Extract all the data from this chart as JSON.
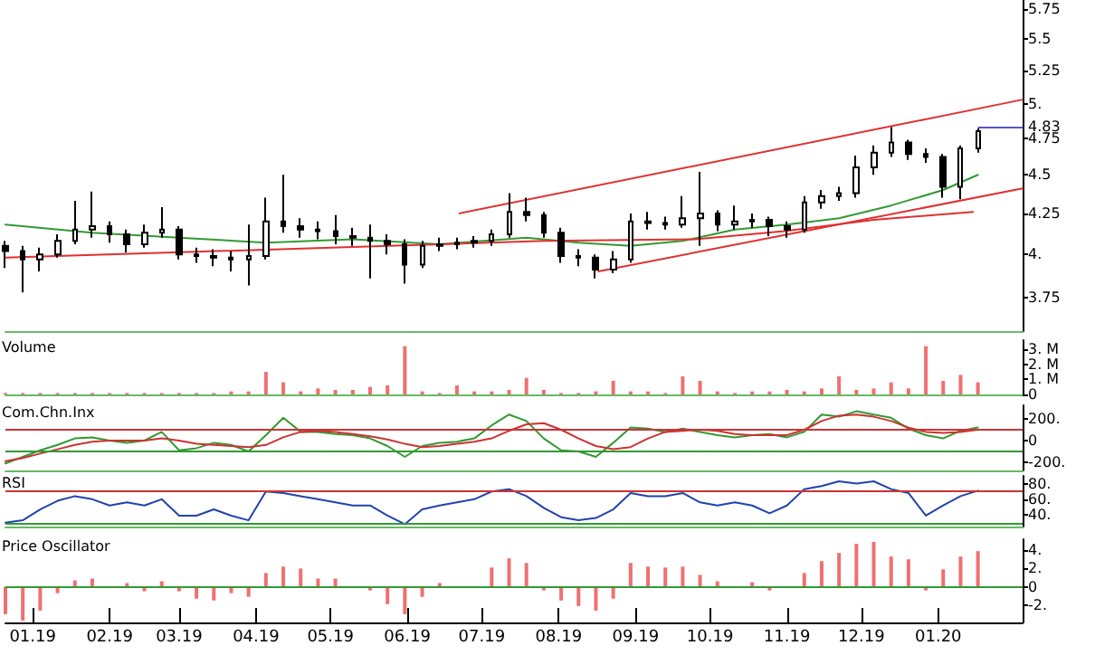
{
  "chart_data": [
    {
      "type": "candlestick",
      "color": "#000000",
      "x": [
        "2018-12-21",
        "2018-12-28",
        "2019-01-04",
        "2019-01-11",
        "2019-01-18",
        "2019-01-25",
        "2019-02-01",
        "2019-02-08",
        "2019-02-15",
        "2019-02-22",
        "2019-03-01",
        "2019-03-08",
        "2019-03-15",
        "2019-03-22",
        "2019-03-29",
        "2019-04-05",
        "2019-04-12",
        "2019-04-19",
        "2019-04-26",
        "2019-05-03",
        "2019-05-10",
        "2019-05-17",
        "2019-05-24",
        "2019-05-31",
        "2019-06-07",
        "2019-06-14",
        "2019-06-21",
        "2019-06-28",
        "2019-07-05",
        "2019-07-12",
        "2019-07-19",
        "2019-07-26",
        "2019-08-02",
        "2019-08-09",
        "2019-08-16",
        "2019-08-23",
        "2019-08-30",
        "2019-09-06",
        "2019-09-13",
        "2019-09-20",
        "2019-09-27",
        "2019-10-04",
        "2019-10-11",
        "2019-10-18",
        "2019-10-25",
        "2019-11-01",
        "2019-11-08",
        "2019-11-15",
        "2019-11-22",
        "2019-11-29",
        "2019-12-06",
        "2019-12-13",
        "2019-12-20",
        "2019-12-27",
        "2020-01-03",
        "2020-01-10",
        "2020-01-17"
      ],
      "ohlc": [
        [
          4.05,
          4.08,
          3.92,
          4.02
        ],
        [
          4.02,
          4.05,
          3.78,
          3.97
        ],
        [
          3.97,
          4.04,
          3.9,
          4.0
        ],
        [
          4.0,
          4.12,
          3.98,
          4.08
        ],
        [
          4.08,
          4.33,
          4.06,
          4.15
        ],
        [
          4.15,
          4.39,
          4.1,
          4.17
        ],
        [
          4.17,
          4.2,
          4.07,
          4.12
        ],
        [
          4.12,
          4.15,
          4.01,
          4.06
        ],
        [
          4.06,
          4.18,
          4.04,
          4.13
        ],
        [
          4.13,
          4.29,
          4.1,
          4.15
        ],
        [
          4.15,
          4.17,
          3.97,
          4.0
        ],
        [
          4.0,
          4.04,
          3.95,
          3.99
        ],
        [
          3.99,
          4.03,
          3.93,
          3.98
        ],
        [
          3.98,
          4.02,
          3.9,
          3.97
        ],
        [
          3.97,
          4.18,
          3.82,
          3.99
        ],
        [
          3.99,
          4.35,
          3.97,
          4.2
        ],
        [
          4.2,
          4.5,
          4.13,
          4.17
        ],
        [
          4.17,
          4.22,
          4.1,
          4.15
        ],
        [
          4.15,
          4.2,
          4.09,
          4.14
        ],
        [
          4.14,
          4.24,
          4.06,
          4.11
        ],
        [
          4.11,
          4.16,
          4.05,
          4.1
        ],
        [
          4.1,
          4.18,
          3.86,
          4.08
        ],
        [
          4.08,
          4.12,
          4.0,
          4.06
        ],
        [
          4.06,
          4.09,
          3.83,
          3.94
        ],
        [
          3.94,
          4.08,
          3.92,
          4.05
        ],
        [
          4.05,
          4.1,
          4.02,
          4.06
        ],
        [
          4.06,
          4.1,
          4.03,
          4.07
        ],
        [
          4.07,
          4.11,
          4.04,
          4.08
        ],
        [
          4.08,
          4.15,
          4.05,
          4.12
        ],
        [
          4.12,
          4.38,
          4.1,
          4.26
        ],
        [
          4.26,
          4.35,
          4.2,
          4.24
        ],
        [
          4.24,
          4.26,
          4.1,
          4.13
        ],
        [
          4.13,
          4.16,
          3.95,
          3.99
        ],
        [
          3.99,
          4.03,
          3.93,
          3.98
        ],
        [
          3.98,
          4.0,
          3.86,
          3.91
        ],
        [
          3.91,
          4.02,
          3.89,
          3.97
        ],
        [
          3.97,
          4.25,
          3.95,
          4.2
        ],
        [
          4.2,
          4.26,
          4.15,
          4.19
        ],
        [
          4.19,
          4.23,
          4.15,
          4.18
        ],
        [
          4.18,
          4.36,
          4.16,
          4.22
        ],
        [
          4.22,
          4.52,
          4.05,
          4.25
        ],
        [
          4.25,
          4.27,
          4.14,
          4.18
        ],
        [
          4.18,
          4.3,
          4.15,
          4.2
        ],
        [
          4.2,
          4.25,
          4.16,
          4.21
        ],
        [
          4.21,
          4.23,
          4.11,
          4.17
        ],
        [
          4.17,
          4.2,
          4.1,
          4.15
        ],
        [
          4.15,
          4.36,
          4.13,
          4.32
        ],
        [
          4.32,
          4.4,
          4.28,
          4.36
        ],
        [
          4.36,
          4.42,
          4.33,
          4.38
        ],
        [
          4.38,
          4.63,
          4.35,
          4.55
        ],
        [
          4.55,
          4.7,
          4.5,
          4.65
        ],
        [
          4.65,
          4.83,
          4.62,
          4.72
        ],
        [
          4.72,
          4.74,
          4.6,
          4.64
        ],
        [
          4.64,
          4.68,
          4.58,
          4.62
        ],
        [
          4.62,
          4.64,
          4.35,
          4.42
        ],
        [
          4.42,
          4.7,
          4.34,
          4.68
        ],
        [
          4.68,
          4.82,
          4.65,
          4.8
        ]
      ],
      "series": [
        {
          "type": "line",
          "color": "#339933",
          "x": [
            "2018-12-21",
            "2019-01-25",
            "2019-03-01",
            "2019-04-05",
            "2019-05-10",
            "2019-06-14",
            "2019-07-19",
            "2019-08-09",
            "2019-08-30",
            "2019-09-20",
            "2019-10-11",
            "2019-11-01",
            "2019-11-22",
            "2019-12-13",
            "2020-01-03",
            "2020-01-17"
          ],
          "values": [
            4.18,
            4.13,
            4.1,
            4.07,
            4.09,
            4.06,
            4.1,
            4.07,
            4.05,
            4.08,
            4.15,
            4.18,
            4.22,
            4.3,
            4.4,
            4.5
          ]
        },
        {
          "type": "line",
          "color": "#e03030",
          "x": [
            "2019-06-22",
            "2020-02-04"
          ],
          "values": [
            4.25,
            5.03
          ]
        },
        {
          "type": "line",
          "color": "#e03030",
          "x": [
            "2019-08-17",
            "2020-02-04"
          ],
          "values": [
            3.9,
            4.41
          ]
        },
        {
          "type": "line",
          "color": "#e03030",
          "x": [
            "2018-12-21",
            "2019-07-26",
            "2019-09-25",
            "2019-10-31",
            "2019-12-06",
            "2020-01-15"
          ],
          "values": [
            3.98,
            4.08,
            4.09,
            4.14,
            4.21,
            4.26
          ]
        }
      ],
      "log": true,
      "marker": "none",
      "xlim": [
        "2018-12-21",
        "2020-02-04"
      ],
      "ylim": [
        3.57,
        5.83
      ],
      "yticks": [
        5.75,
        5.5,
        5.25,
        {
          "value": 5,
          "label": "5."
        },
        4.75,
        4.5,
        4.25,
        {
          "value": 4,
          "label": "4."
        },
        3.75
      ],
      "ref_lines": [
        {
          "axis": "y",
          "value": 4.83,
          "label": "4.83",
          "color": "#5555cc"
        }
      ],
      "tick_labels": "y"
    },
    {
      "type": "bar",
      "title": "Volume",
      "color": "#f07070",
      "x": [
        "2018-12-21",
        "2018-12-28",
        "2019-01-04",
        "2019-01-11",
        "2019-01-18",
        "2019-01-25",
        "2019-02-01",
        "2019-02-08",
        "2019-02-15",
        "2019-02-22",
        "2019-03-01",
        "2019-03-08",
        "2019-03-15",
        "2019-03-22",
        "2019-03-29",
        "2019-04-05",
        "2019-04-12",
        "2019-04-19",
        "2019-04-26",
        "2019-05-03",
        "2019-05-10",
        "2019-05-17",
        "2019-05-24",
        "2019-05-31",
        "2019-06-07",
        "2019-06-14",
        "2019-06-21",
        "2019-06-28",
        "2019-07-05",
        "2019-07-12",
        "2019-07-19",
        "2019-07-26",
        "2019-08-02",
        "2019-08-09",
        "2019-08-16",
        "2019-08-23",
        "2019-08-30",
        "2019-09-06",
        "2019-09-13",
        "2019-09-20",
        "2019-09-27",
        "2019-10-04",
        "2019-10-11",
        "2019-10-18",
        "2019-10-25",
        "2019-11-01",
        "2019-11-08",
        "2019-11-15",
        "2019-11-22",
        "2019-11-29",
        "2019-12-06",
        "2019-12-13",
        "2019-12-20",
        "2019-12-27",
        "2020-01-03",
        "2020-01-10",
        "2020-01-17"
      ],
      "values": [
        0.1,
        0.1,
        0.1,
        0.1,
        0.1,
        0.1,
        0.1,
        0.1,
        0.1,
        0.1,
        0.1,
        0.1,
        0.1,
        0.2,
        0.2,
        1.5,
        0.8,
        0.2,
        0.4,
        0.3,
        0.3,
        0.5,
        0.6,
        3.2,
        0.2,
        0.1,
        0.6,
        0.2,
        0.2,
        0.3,
        1.1,
        0.3,
        0.1,
        0.1,
        0.2,
        0.9,
        0.2,
        0.2,
        0.1,
        1.2,
        0.9,
        0.2,
        0.1,
        0.2,
        0.2,
        0.3,
        0.2,
        0.4,
        1.2,
        0.3,
        0.4,
        0.8,
        0.4,
        3.2,
        0.9,
        1.3,
        0.8
      ],
      "xlim": [
        "2018-12-21",
        "2020-02-04"
      ],
      "ylim": [
        0,
        3.6
      ],
      "yticks": [
        {
          "value": 3,
          "label": "3. M"
        },
        {
          "value": 2,
          "label": "2. M"
        },
        {
          "value": 1,
          "label": "1. M"
        },
        0
      ],
      "tick_labels": "y"
    },
    {
      "type": "line",
      "title": "Com.Chn.Inx",
      "marker": "none",
      "x": [
        "2018-12-21",
        "2018-12-28",
        "2019-01-04",
        "2019-01-11",
        "2019-01-18",
        "2019-01-25",
        "2019-02-01",
        "2019-02-08",
        "2019-02-15",
        "2019-02-22",
        "2019-03-01",
        "2019-03-08",
        "2019-03-15",
        "2019-03-22",
        "2019-03-29",
        "2019-04-05",
        "2019-04-12",
        "2019-04-19",
        "2019-04-26",
        "2019-05-03",
        "2019-05-10",
        "2019-05-17",
        "2019-05-24",
        "2019-05-31",
        "2019-06-07",
        "2019-06-14",
        "2019-06-21",
        "2019-06-28",
        "2019-07-05",
        "2019-07-12",
        "2019-07-19",
        "2019-07-26",
        "2019-08-02",
        "2019-08-09",
        "2019-08-16",
        "2019-08-23",
        "2019-08-30",
        "2019-09-06",
        "2019-09-13",
        "2019-09-20",
        "2019-09-27",
        "2019-10-04",
        "2019-10-11",
        "2019-10-18",
        "2019-10-25",
        "2019-11-01",
        "2019-11-08",
        "2019-11-15",
        "2019-11-22",
        "2019-11-29",
        "2019-12-06",
        "2019-12-13",
        "2019-12-20",
        "2019-12-27",
        "2020-01-03",
        "2020-01-10",
        "2020-01-17"
      ],
      "series": [
        {
          "color": "#339933",
          "values": [
            -210,
            -150,
            -90,
            -40,
            20,
            30,
            0,
            -20,
            0,
            80,
            -90,
            -70,
            -20,
            -40,
            -100,
            50,
            210,
            80,
            80,
            60,
            50,
            20,
            -50,
            -150,
            -50,
            -20,
            -10,
            20,
            140,
            240,
            180,
            20,
            -90,
            -100,
            -150,
            -20,
            120,
            110,
            80,
            110,
            80,
            50,
            30,
            50,
            60,
            30,
            80,
            240,
            220,
            270,
            240,
            210,
            110,
            50,
            20,
            90,
            120
          ]
        },
        {
          "color": "#cc3333",
          "values": [
            -190,
            -160,
            -120,
            -80,
            -40,
            -10,
            0,
            0,
            0,
            20,
            0,
            -30,
            -40,
            -50,
            -60,
            -40,
            30,
            80,
            90,
            80,
            60,
            40,
            10,
            -30,
            -60,
            -50,
            -30,
            -10,
            20,
            90,
            150,
            160,
            100,
            20,
            -50,
            -80,
            -60,
            20,
            80,
            90,
            100,
            90,
            60,
            50,
            50,
            50,
            100,
            180,
            230,
            240,
            220,
            180,
            120,
            80,
            70,
            80,
            100
          ]
        }
      ],
      "xlim": [
        "2018-12-21",
        "2020-02-04"
      ],
      "ylim": [
        -275,
        325
      ],
      "yticks": [
        {
          "value": 200,
          "label": "200."
        },
        0,
        {
          "value": -200,
          "label": "-200."
        }
      ],
      "ref_lines": [
        {
          "axis": "y",
          "value": 100,
          "color": "#cc3333"
        },
        {
          "axis": "y",
          "value": -100,
          "color": "#339933"
        }
      ],
      "tick_labels": "y"
    },
    {
      "type": "line",
      "title": "RSI",
      "marker": "none",
      "color": "#2244aa",
      "x": [
        "2018-12-21",
        "2018-12-28",
        "2019-01-04",
        "2019-01-11",
        "2019-01-18",
        "2019-01-25",
        "2019-02-01",
        "2019-02-08",
        "2019-02-15",
        "2019-02-22",
        "2019-03-01",
        "2019-03-08",
        "2019-03-15",
        "2019-03-22",
        "2019-03-29",
        "2019-04-05",
        "2019-04-12",
        "2019-04-19",
        "2019-04-26",
        "2019-05-03",
        "2019-05-10",
        "2019-05-17",
        "2019-05-24",
        "2019-05-31",
        "2019-06-07",
        "2019-06-14",
        "2019-06-21",
        "2019-06-28",
        "2019-07-05",
        "2019-07-12",
        "2019-07-19",
        "2019-07-26",
        "2019-08-02",
        "2019-08-09",
        "2019-08-16",
        "2019-08-23",
        "2019-08-30",
        "2019-09-06",
        "2019-09-13",
        "2019-09-20",
        "2019-09-27",
        "2019-10-04",
        "2019-10-11",
        "2019-10-18",
        "2019-10-25",
        "2019-11-01",
        "2019-11-08",
        "2019-11-15",
        "2019-11-22",
        "2019-11-29",
        "2019-12-06",
        "2019-12-13",
        "2019-12-20",
        "2019-12-27",
        "2020-01-03",
        "2020-01-10",
        "2020-01-17"
      ],
      "values": [
        30,
        33,
        47,
        58,
        64,
        60,
        52,
        56,
        52,
        60,
        39,
        39,
        47,
        39,
        33,
        70,
        68,
        64,
        60,
        56,
        52,
        52,
        39,
        28,
        47,
        52,
        56,
        60,
        70,
        73,
        64,
        49,
        37,
        33,
        36,
        47,
        68,
        64,
        64,
        68,
        56,
        52,
        56,
        52,
        42,
        52,
        73,
        77,
        83,
        80,
        83,
        73,
        68,
        39,
        52,
        64,
        71
      ],
      "xlim": [
        "2018-12-21",
        "2020-02-04"
      ],
      "ylim": [
        25,
        90
      ],
      "yticks": [
        {
          "value": 80,
          "label": "80."
        },
        {
          "value": 60,
          "label": "60."
        },
        {
          "value": 40,
          "label": "40."
        }
      ],
      "ref_lines": [
        {
          "axis": "y",
          "value": 70,
          "color": "#cc3333"
        },
        {
          "axis": "y",
          "value": 30,
          "color": "#339933"
        }
      ],
      "tick_labels": "y"
    },
    {
      "type": "bar",
      "title": "Price Oscillator",
      "color": "#f07070",
      "x": [
        "2018-12-21",
        "2018-12-28",
        "2019-01-04",
        "2019-01-11",
        "2019-01-18",
        "2019-01-25",
        "2019-02-01",
        "2019-02-08",
        "2019-02-15",
        "2019-02-22",
        "2019-03-01",
        "2019-03-08",
        "2019-03-15",
        "2019-03-22",
        "2019-03-29",
        "2019-04-05",
        "2019-04-12",
        "2019-04-19",
        "2019-04-26",
        "2019-05-03",
        "2019-05-10",
        "2019-05-17",
        "2019-05-24",
        "2019-05-31",
        "2019-06-07",
        "2019-06-14",
        "2019-06-21",
        "2019-06-28",
        "2019-07-05",
        "2019-07-12",
        "2019-07-19",
        "2019-07-26",
        "2019-08-02",
        "2019-08-09",
        "2019-08-16",
        "2019-08-23",
        "2019-08-30",
        "2019-09-06",
        "2019-09-13",
        "2019-09-20",
        "2019-09-27",
        "2019-10-04",
        "2019-10-11",
        "2019-10-18",
        "2019-10-25",
        "2019-11-01",
        "2019-11-08",
        "2019-11-15",
        "2019-11-22",
        "2019-11-29",
        "2019-12-06",
        "2019-12-13",
        "2019-12-20",
        "2019-12-27",
        "2020-01-03",
        "2020-01-10",
        "2020-01-17"
      ],
      "values": [
        -3.0,
        -3.7,
        -2.6,
        -0.7,
        0.7,
        0.9,
        0,
        0.4,
        -0.5,
        0.6,
        -0.5,
        -1.3,
        -1.5,
        -0.7,
        -1.1,
        1.5,
        2.2,
        2.0,
        0.9,
        0.9,
        null,
        -0.4,
        -1.9,
        -3.0,
        -1.1,
        0.4,
        null,
        0,
        2.1,
        3.1,
        2.6,
        -0.4,
        -1.5,
        -2.1,
        -2.6,
        -1.3,
        2.6,
        2.2,
        2.1,
        2.2,
        1.3,
        0.6,
        0,
        0.5,
        -0.4,
        0,
        1.5,
        2.8,
        3.7,
        4.7,
        4.9,
        3.3,
        3.0,
        -0.4,
        1.9,
        3.3,
        3.9
      ],
      "xlim": [
        "2018-12-21",
        "2020-02-04"
      ],
      "xticks": [
        {
          "value": "2019-01-01",
          "label": "01.19"
        },
        {
          "value": "2019-02-01",
          "label": "02.19"
        },
        {
          "value": "2019-03-01",
          "label": "03.19"
        },
        {
          "value": "2019-04-01",
          "label": "04.19"
        },
        {
          "value": "2019-05-01",
          "label": "05.19"
        },
        {
          "value": "2019-06-01",
          "label": "06.19"
        },
        {
          "value": "2019-07-01",
          "label": "07.19"
        },
        {
          "value": "2019-08-01",
          "label": "08.19"
        },
        {
          "value": "2019-09-01",
          "label": "09.19"
        },
        {
          "value": "2019-10-01",
          "label": "10.19"
        },
        {
          "value": "2019-11-01",
          "label": "11.19"
        },
        {
          "value": "2019-12-01",
          "label": "12.19"
        },
        {
          "value": "2020-01-01",
          "label": "01.20"
        }
      ],
      "ylim": [
        -3.9,
        5.2
      ],
      "yticks": [
        {
          "value": 4,
          "label": "4."
        },
        {
          "value": 2,
          "label": "2."
        },
        0,
        {
          "value": -2,
          "label": "-2."
        }
      ],
      "ref_lines": [
        {
          "axis": "y",
          "value": 0,
          "color": "#339933"
        }
      ]
    }
  ]
}
